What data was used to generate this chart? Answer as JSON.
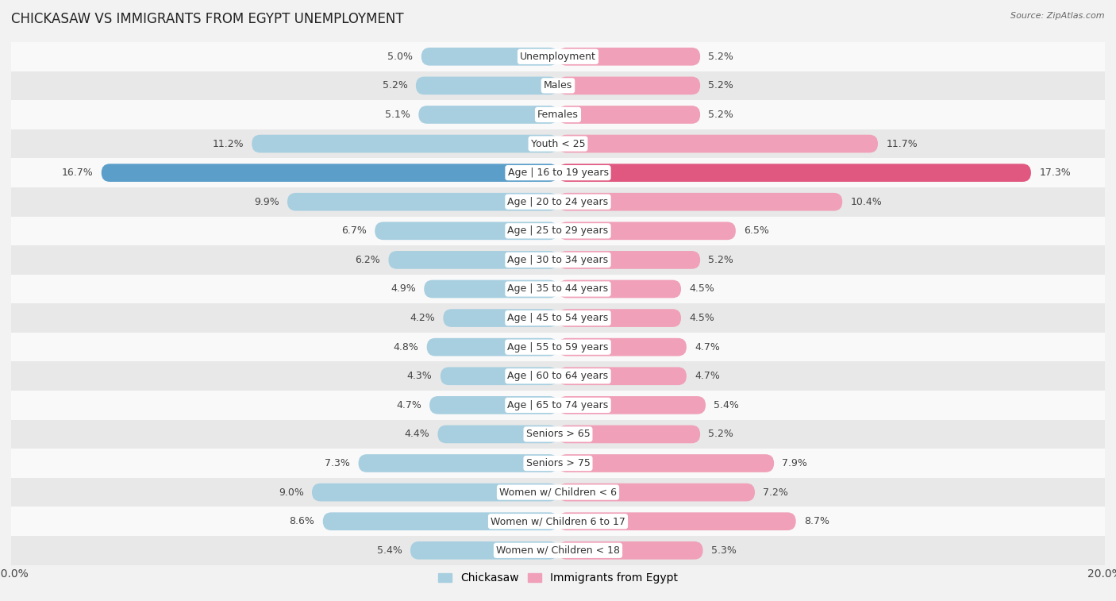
{
  "title": "CHICKASAW VS IMMIGRANTS FROM EGYPT UNEMPLOYMENT",
  "source": "Source: ZipAtlas.com",
  "categories": [
    "Unemployment",
    "Males",
    "Females",
    "Youth < 25",
    "Age | 16 to 19 years",
    "Age | 20 to 24 years",
    "Age | 25 to 29 years",
    "Age | 30 to 34 years",
    "Age | 35 to 44 years",
    "Age | 45 to 54 years",
    "Age | 55 to 59 years",
    "Age | 60 to 64 years",
    "Age | 65 to 74 years",
    "Seniors > 65",
    "Seniors > 75",
    "Women w/ Children < 6",
    "Women w/ Children 6 to 17",
    "Women w/ Children < 18"
  ],
  "chickasaw_values": [
    5.0,
    5.2,
    5.1,
    11.2,
    16.7,
    9.9,
    6.7,
    6.2,
    4.9,
    4.2,
    4.8,
    4.3,
    4.7,
    4.4,
    7.3,
    9.0,
    8.6,
    5.4
  ],
  "egypt_values": [
    5.2,
    5.2,
    5.2,
    11.7,
    17.3,
    10.4,
    6.5,
    5.2,
    4.5,
    4.5,
    4.7,
    4.7,
    5.4,
    5.2,
    7.9,
    7.2,
    8.7,
    5.3
  ],
  "chickasaw_color": "#a8cfe0",
  "egypt_color": "#f0a0b8",
  "highlight_chickasaw_color": "#5b9ec9",
  "highlight_egypt_color": "#e05880",
  "max_value": 20.0,
  "bar_height": 0.62,
  "bg_color": "#f2f2f2",
  "row_color_even": "#f9f9f9",
  "row_color_odd": "#e8e8e8",
  "label_fontsize": 9.0,
  "title_fontsize": 12,
  "legend_fontsize": 10,
  "value_label_color": "#444444",
  "center_label_bg": "#ffffff",
  "center_label_color": "#333333"
}
